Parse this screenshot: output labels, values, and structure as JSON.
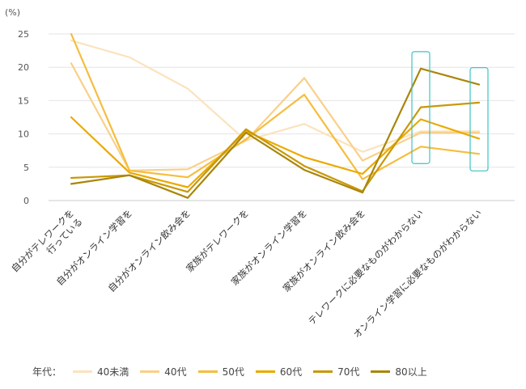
{
  "chart_data": {
    "type": "line",
    "unit_label": "(%)",
    "ylim": [
      0,
      25
    ],
    "yticks": [
      0,
      5,
      10,
      15,
      20,
      25
    ],
    "grid": true,
    "categories": [
      [
        "自分がテレワークを",
        "行っている"
      ],
      [
        "自分がオンライン学習を"
      ],
      [
        "自分がオンライン飲み会を"
      ],
      [
        "家族がテレワークを"
      ],
      [
        "家族がオンライン学習を"
      ],
      [
        "家族がオンライン飲み会を"
      ],
      [
        "テレワークに必要なものがわからない"
      ],
      [
        "オンライン学習に必要なものがわからない"
      ]
    ],
    "series": [
      {
        "name": "40未満",
        "color": "#fbe3bd",
        "values": [
          24.0,
          21.5,
          16.8,
          9.0,
          11.5,
          7.3,
          10.4,
          10.4
        ]
      },
      {
        "name": "40代",
        "color": "#f9d088",
        "values": [
          20.6,
          4.5,
          4.7,
          9.0,
          18.4,
          6.0,
          10.2,
          10.2
        ]
      },
      {
        "name": "50代",
        "color": "#f6bd3d",
        "values": [
          25.0,
          4.5,
          3.5,
          9.2,
          15.9,
          3.2,
          8.1,
          7.0
        ]
      },
      {
        "name": "60代",
        "color": "#eaaa00",
        "values": [
          12.5,
          4.2,
          2.0,
          10.4,
          6.5,
          4.0,
          12.2,
          9.3
        ]
      },
      {
        "name": "70代",
        "color": "#c99808",
        "values": [
          3.4,
          3.8,
          1.3,
          10.7,
          5.2,
          1.4,
          14.0,
          14.7
        ]
      },
      {
        "name": "80以上",
        "color": "#a9860a",
        "values": [
          2.5,
          3.8,
          0.4,
          10.2,
          4.6,
          1.2,
          19.8,
          17.4
        ]
      }
    ],
    "highlight_boxes_color": "#3fc3c3",
    "legend_title": "年代：",
    "legend_placement": "bottom"
  }
}
